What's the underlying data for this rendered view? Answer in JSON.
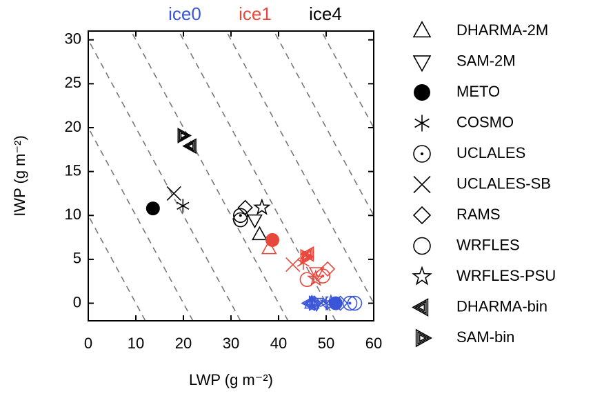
{
  "chart_data": {
    "type": "scatter",
    "x_label": "LWP (g m⁻²)",
    "y_label": "IWP (g m⁻²)",
    "xlim": [
      0,
      60
    ],
    "ylim": [
      -2,
      31
    ],
    "xticks": [
      0,
      10,
      20,
      30,
      40,
      50,
      60
    ],
    "yticks": [
      0,
      5,
      10,
      15,
      20,
      25,
      30
    ],
    "dashed_sums": [
      10,
      20,
      30,
      40,
      50,
      60,
      70,
      80
    ],
    "groups": [
      {
        "name": "ice0",
        "color": "#3a55d8"
      },
      {
        "name": "ice1",
        "color": "#e8473c"
      },
      {
        "name": "ice4",
        "color": "#000000"
      }
    ],
    "series": [
      {
        "name": "DHARMA-2M",
        "marker": "triangle-up",
        "x": [
          47,
          38,
          36
        ],
        "y": [
          0,
          6.2,
          7.8
        ]
      },
      {
        "name": "SAM-2M",
        "marker": "triangle-down",
        "x": [
          48,
          48,
          35
        ],
        "y": [
          0,
          3.5,
          9.5
        ]
      },
      {
        "name": "METO",
        "marker": "filled-circle",
        "x": [
          52,
          38.7,
          13.6
        ],
        "y": [
          0,
          7.2,
          10.8
        ]
      },
      {
        "name": "COSMO",
        "marker": "asterisk",
        "x": [
          50,
          45.2,
          19.9
        ],
        "y": [
          0,
          4.6,
          11.1
        ]
      },
      {
        "name": "UCLALES",
        "marker": "circle-dot",
        "x": [
          55,
          49.3,
          32
        ],
        "y": [
          0,
          3.1,
          10
        ]
      },
      {
        "name": "UCLALES-SB",
        "marker": "cross",
        "x": [
          49,
          43,
          18
        ],
        "y": [
          0,
          4.4,
          12.5
        ]
      },
      {
        "name": "RAMS",
        "marker": "diamond",
        "x": [
          53,
          50.3,
          33
        ],
        "y": [
          0,
          3.9,
          10.9
        ]
      },
      {
        "name": "WRFLES",
        "marker": "circle",
        "x": [
          56,
          46,
          32
        ],
        "y": [
          0,
          2.7,
          9.5
        ]
      },
      {
        "name": "WRFLES-PSU",
        "marker": "star",
        "x": [
          51,
          47.8,
          36.5
        ],
        "y": [
          0,
          2.8,
          10.9
        ]
      },
      {
        "name": "DHARMA-bin",
        "marker": "triangle-left",
        "x": [
          46.5,
          46.3,
          21.6
        ],
        "y": [
          0,
          5.6,
          17.9
        ]
      },
      {
        "name": "SAM-bin",
        "marker": "triangle-right",
        "x": [
          47.5,
          45.7,
          19.9
        ],
        "y": [
          0,
          5.3,
          19.1
        ]
      }
    ]
  }
}
